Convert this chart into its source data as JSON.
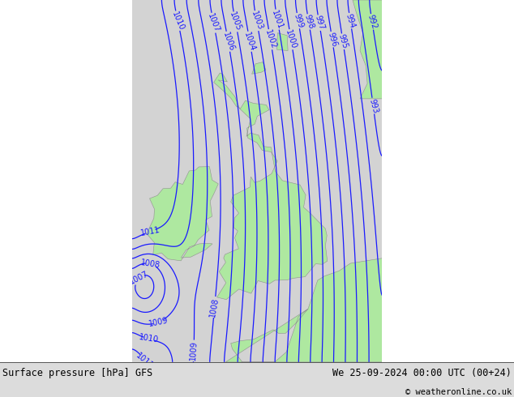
{
  "title_left": "Surface pressure [hPa] GFS",
  "title_right": "We 25-09-2024 00:00 UTC (00+24)",
  "copyright": "© weatheronline.co.uk",
  "bg_color": "#d3d3d3",
  "land_color": "#aee8a0",
  "land_edge_color": "#909090",
  "sea_color": "#d3d3d3",
  "contour_color": "#1a1aff",
  "label_fontsize": 7,
  "bottom_bar_color": "#dcdcdc",
  "figsize": [
    6.34,
    4.9
  ],
  "dpi": 100,
  "lon_min": -11.5,
  "lon_max": 5.5,
  "lat_min": 47.5,
  "lat_max": 61.8,
  "contour_linewidth": 0.9,
  "bottom_bar_height": 0.088
}
